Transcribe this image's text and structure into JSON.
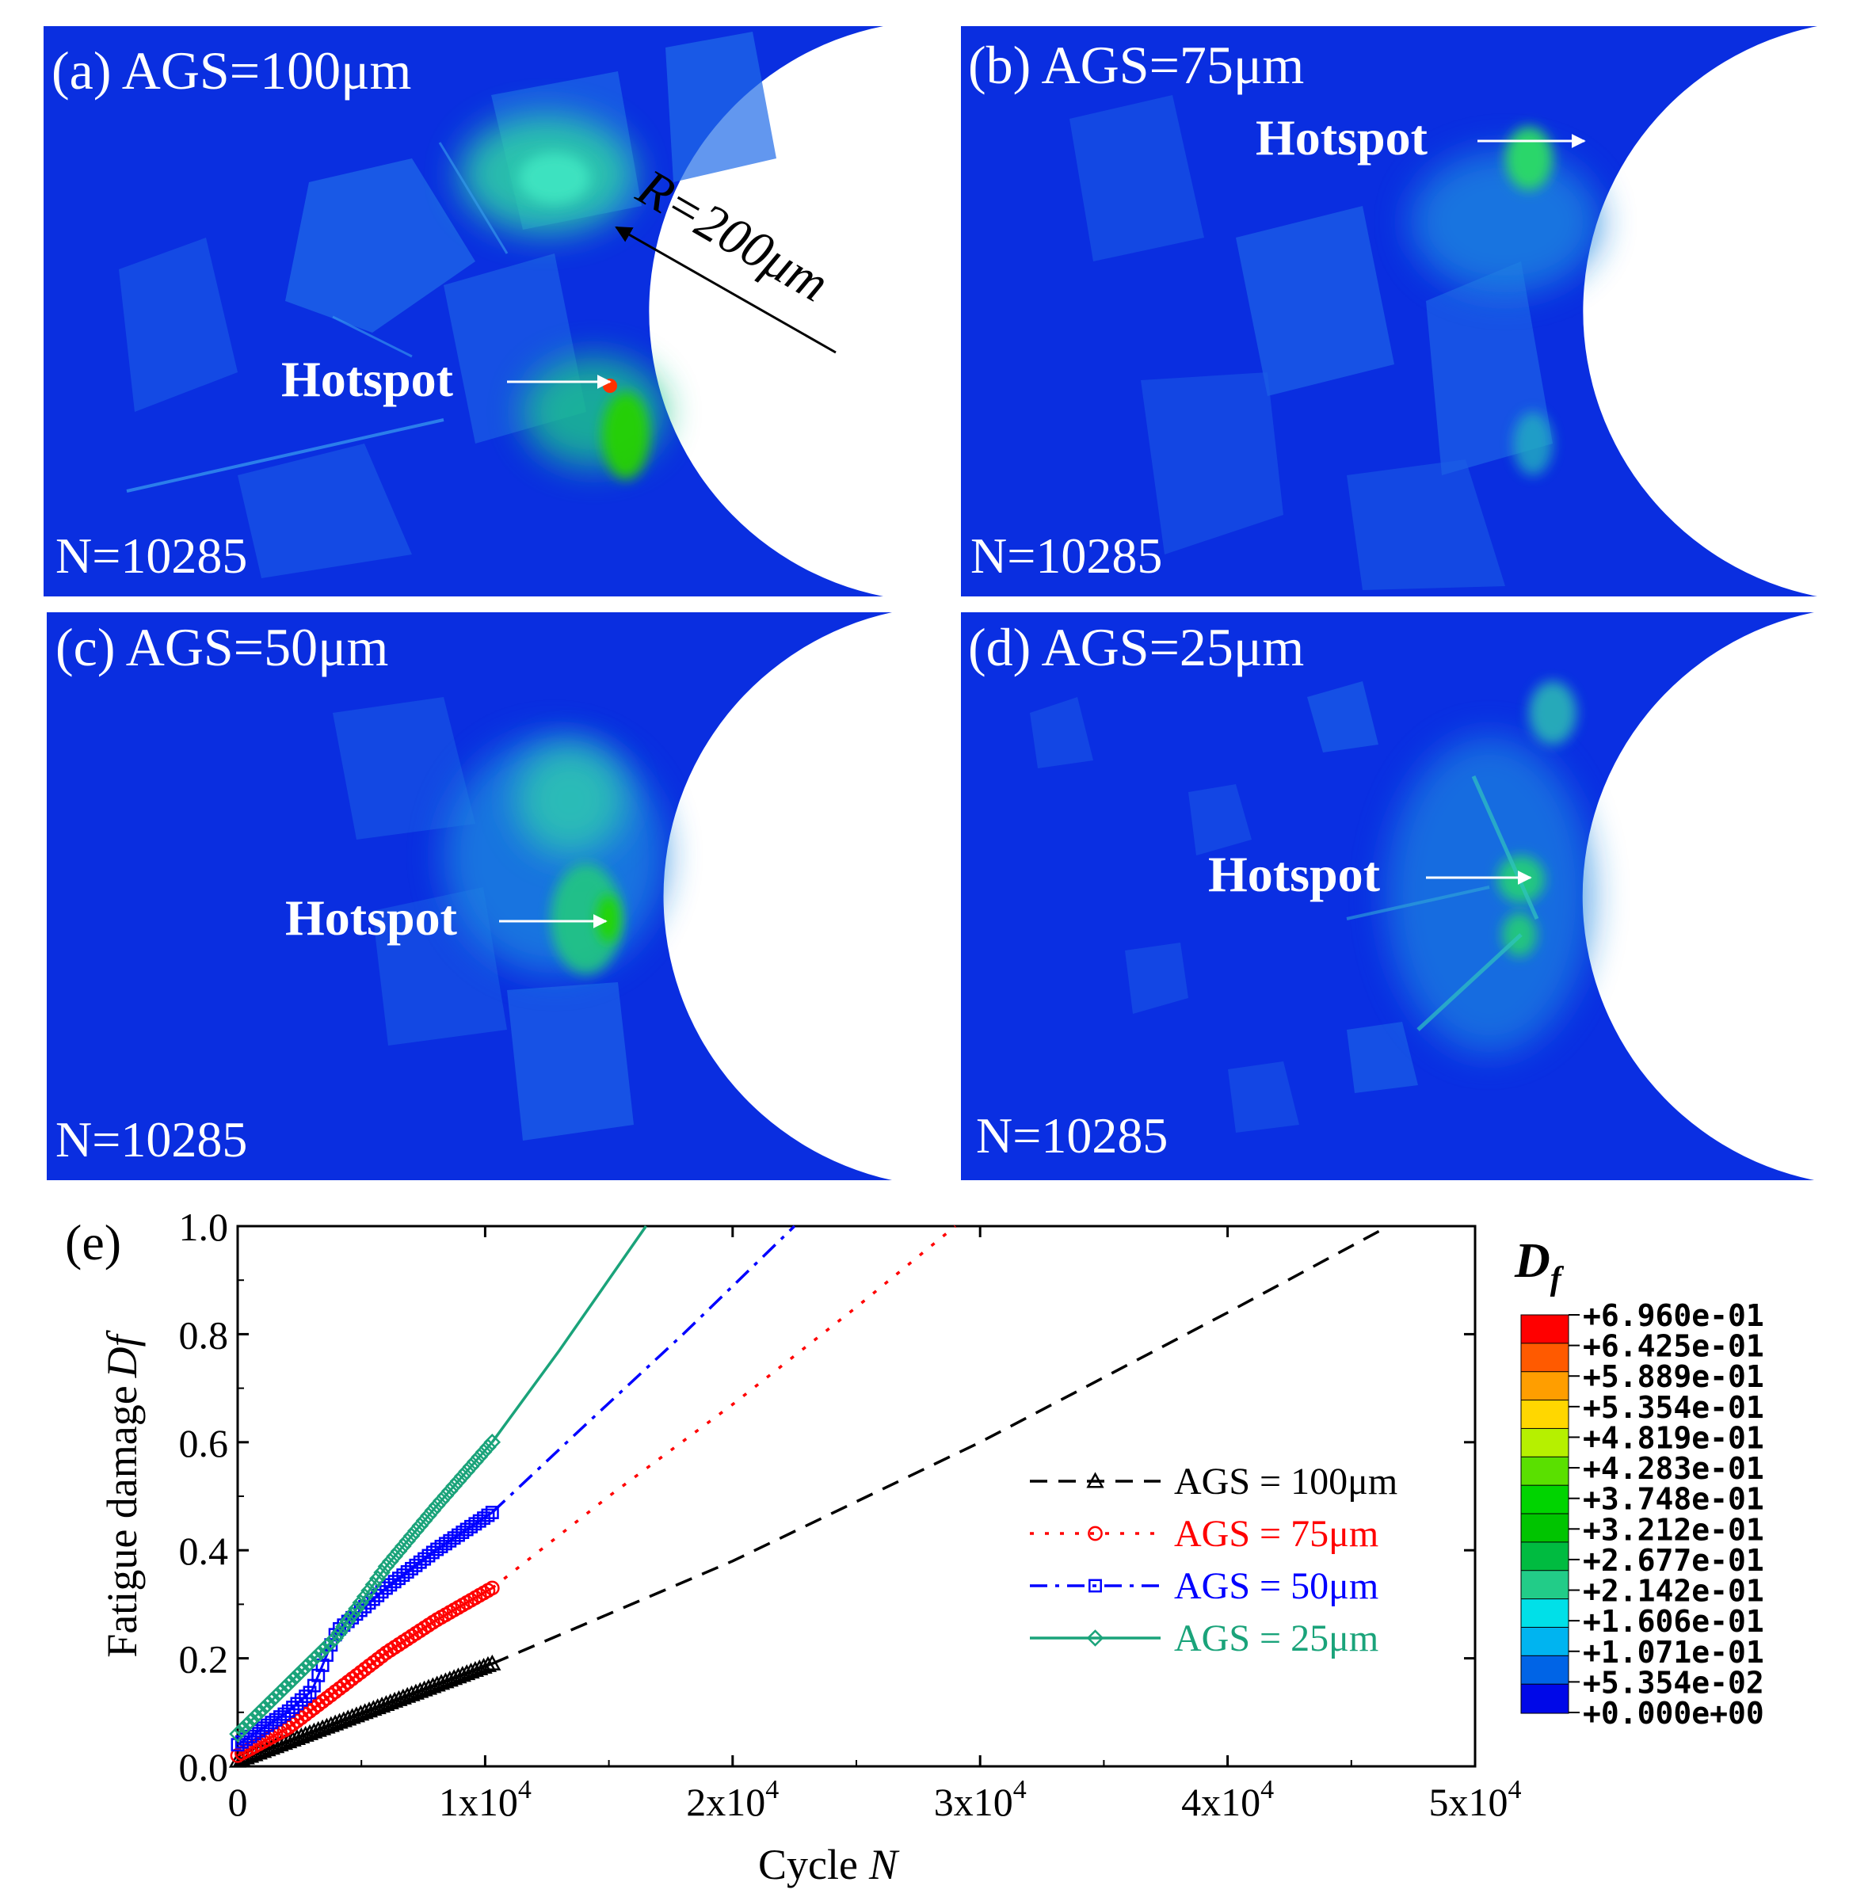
{
  "panels": [
    {
      "id": "a",
      "title": "(a) AGS=100μm",
      "cycle_label": "N=10285",
      "hotspot_label": "Hotspot",
      "radius_label": "R=200μm"
    },
    {
      "id": "b",
      "title": "(b) AGS=75μm",
      "cycle_label": "N=10285",
      "hotspot_label": "Hotspot"
    },
    {
      "id": "c",
      "title": "(c) AGS=50μm",
      "cycle_label": "N=10285",
      "hotspot_label": "Hotspot"
    },
    {
      "id": "d",
      "title": "(d) AGS=25μm",
      "cycle_label": "N=10285",
      "hotspot_label": "Hotspot"
    }
  ],
  "colorbar": {
    "title": "Df",
    "labels": [
      "+6.960e-01",
      "+6.425e-01",
      "+5.889e-01",
      "+5.354e-01",
      "+4.819e-01",
      "+4.283e-01",
      "+3.748e-01",
      "+3.212e-01",
      "+2.677e-01",
      "+2.142e-01",
      "+1.606e-01",
      "+1.071e-01",
      "+5.354e-02",
      "+0.000e+00"
    ],
    "colors": [
      "#ff0000",
      "#ff5a00",
      "#ff9e00",
      "#ffd700",
      "#b6f000",
      "#5ae000",
      "#00d400",
      "#00c400",
      "#00bb40",
      "#22cc88",
      "#00e0e8",
      "#00b4f0",
      "#0064e6",
      "#0008e8"
    ]
  },
  "chart_data": {
    "type": "line",
    "panel_label": "(e)",
    "xlabel": "Cycle N",
    "ylabel": "Fatigue damage Df",
    "xlim": [
      0,
      50000
    ],
    "ylim": [
      0,
      1.0
    ],
    "xticks": [
      0,
      10000,
      20000,
      30000,
      40000,
      50000
    ],
    "xtick_labels": [
      "0",
      "1x10^4",
      "2x10^4",
      "3x10^4",
      "4x10^4",
      "5x10^4"
    ],
    "yticks": [
      0.0,
      0.2,
      0.4,
      0.6,
      0.8,
      1.0
    ],
    "ytick_labels": [
      "0.0",
      "0.2",
      "0.4",
      "0.6",
      "0.8",
      "1.0"
    ],
    "legend_position": "center-right",
    "series": [
      {
        "name": "AGS = 100μm",
        "color": "#000000",
        "line": "dash",
        "marker": "triangle",
        "measured": {
          "x": [
            0,
            2000,
            4000,
            6000,
            8000,
            10285
          ],
          "y": [
            0.01,
            0.045,
            0.08,
            0.115,
            0.15,
            0.19
          ]
        },
        "extrapolated": {
          "x": [
            10285,
            20000,
            30000,
            40000,
            46500
          ],
          "y": [
            0.19,
            0.38,
            0.6,
            0.84,
            1.0
          ]
        }
      },
      {
        "name": "AGS = 75μm",
        "color": "#ff0000",
        "line": "dot",
        "marker": "circle",
        "measured": {
          "x": [
            0,
            2000,
            4000,
            6000,
            8000,
            10285
          ],
          "y": [
            0.02,
            0.07,
            0.14,
            0.21,
            0.27,
            0.33
          ]
        },
        "extrapolated": {
          "x": [
            10285,
            15000,
            20000,
            25000,
            29000
          ],
          "y": [
            0.33,
            0.5,
            0.67,
            0.85,
            1.0
          ]
        }
      },
      {
        "name": "AGS = 50μm",
        "color": "#0000ff",
        "line": "dashdot",
        "marker": "square",
        "measured": {
          "x": [
            0,
            2000,
            3000,
            4000,
            6000,
            8000,
            10285
          ],
          "y": [
            0.04,
            0.1,
            0.14,
            0.25,
            0.33,
            0.4,
            0.47
          ]
        },
        "extrapolated": {
          "x": [
            10285,
            14000,
            18000,
            22500
          ],
          "y": [
            0.47,
            0.63,
            0.8,
            1.0
          ]
        }
      },
      {
        "name": "AGS = 25μm",
        "color": "#1aa37a",
        "line": "solid",
        "marker": "diamond",
        "measured": {
          "x": [
            0,
            2000,
            4000,
            6000,
            8000,
            10285
          ],
          "y": [
            0.06,
            0.15,
            0.24,
            0.37,
            0.48,
            0.6
          ]
        },
        "extrapolated": {
          "x": [
            10285,
            13000,
            16500
          ],
          "y": [
            0.6,
            0.77,
            1.0
          ]
        }
      }
    ]
  }
}
